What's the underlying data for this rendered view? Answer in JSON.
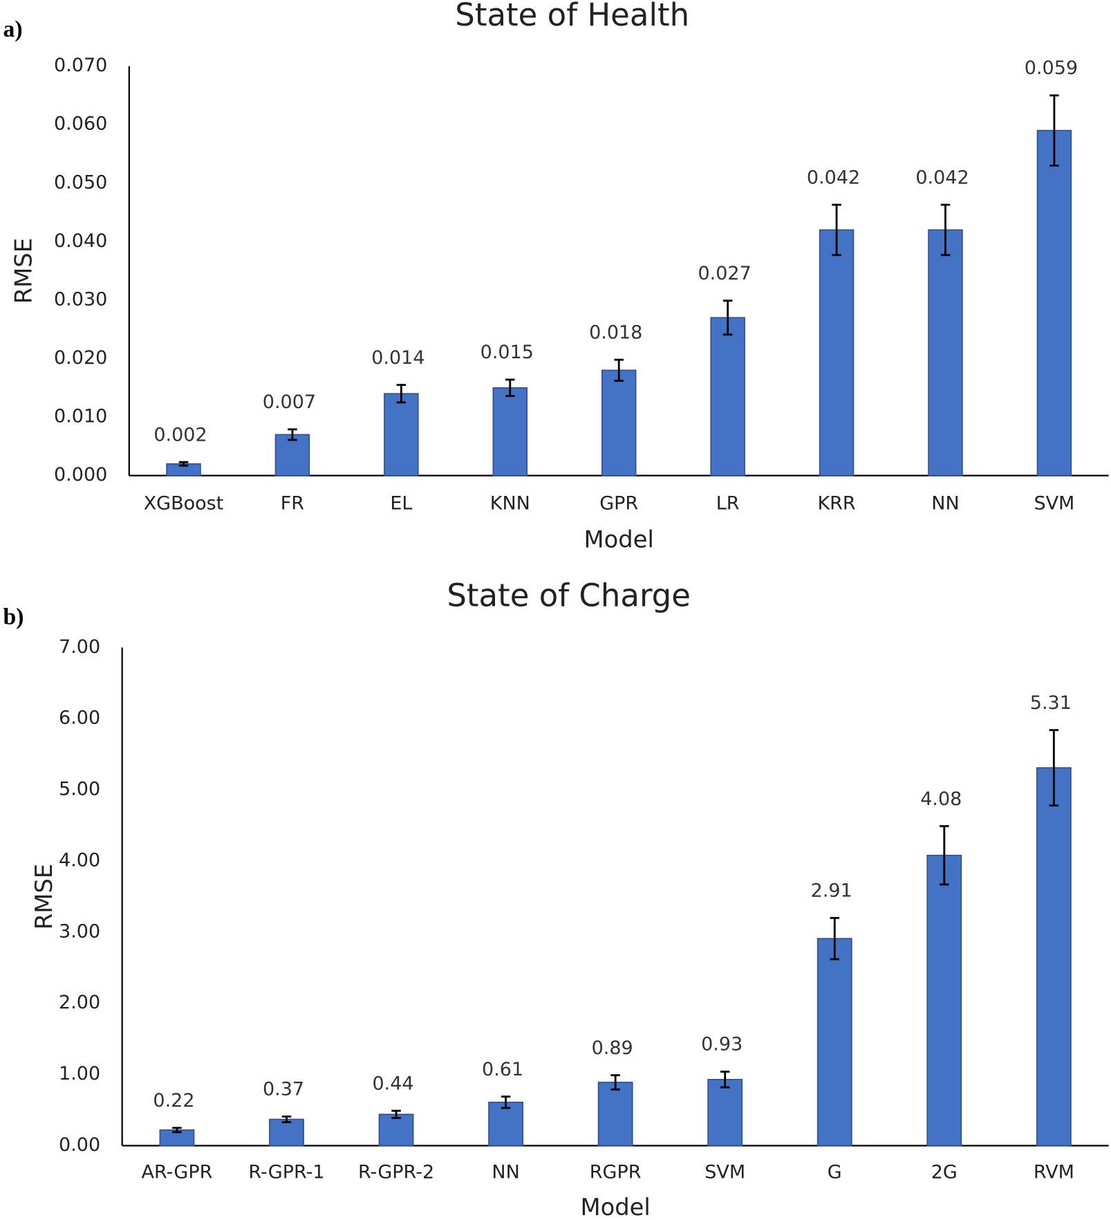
{
  "chart_data": [
    {
      "type": "bar",
      "panel": "a)",
      "title": "State of Health",
      "xlabel": "Model",
      "ylabel": "RMSE",
      "categories": [
        "XGBoost",
        "FR",
        "EL",
        "KNN",
        "GPR",
        "LR",
        "KRR",
        "NN",
        "SVM"
      ],
      "values": [
        0.002,
        0.007,
        0.014,
        0.015,
        0.018,
        0.027,
        0.042,
        0.042,
        0.059
      ],
      "errors": [
        0.0003,
        0.0009,
        0.0015,
        0.0014,
        0.0018,
        0.0029,
        0.0043,
        0.0043,
        0.006
      ],
      "color": "#4472c4",
      "ylim": [
        0,
        0.07
      ],
      "yticks": [
        {
          "value": 0,
          "label": "0.000"
        },
        {
          "value": 0.01,
          "label": "0.010"
        },
        {
          "value": 0.02,
          "label": "0.020"
        },
        {
          "value": 0.03,
          "label": "0.030"
        },
        {
          "value": 0.04,
          "label": "0.040"
        },
        {
          "value": 0.05,
          "label": "0.050"
        },
        {
          "value": 0.06,
          "label": "0.060"
        },
        {
          "value": 0.07,
          "label": "0.070"
        }
      ],
      "grid": false
    },
    {
      "type": "bar",
      "panel": "b)",
      "title": "State of Charge",
      "xlabel": "Model",
      "ylabel": "RMSE",
      "categories": [
        "AR-GPR",
        "R-GPR-1",
        "R-GPR-2",
        "NN",
        "RGPR",
        "SVM",
        "G",
        "2G",
        "RVM"
      ],
      "values": [
        0.22,
        0.37,
        0.44,
        0.61,
        0.89,
        0.93,
        2.91,
        4.08,
        5.31
      ],
      "errors": [
        0.03,
        0.04,
        0.05,
        0.08,
        0.1,
        0.11,
        0.29,
        0.41,
        0.53
      ],
      "color": "#4472c4",
      "ylim": [
        0,
        7
      ],
      "yticks": [
        {
          "value": 0,
          "label": "0.00"
        },
        {
          "value": 1,
          "label": "1.00"
        },
        {
          "value": 2,
          "label": "2.00"
        },
        {
          "value": 3,
          "label": "3.00"
        },
        {
          "value": 4,
          "label": "4.00"
        },
        {
          "value": 5,
          "label": "5.00"
        },
        {
          "value": 6,
          "label": "6.00"
        },
        {
          "value": 7,
          "label": "7.00"
        }
      ],
      "grid": false
    }
  ]
}
